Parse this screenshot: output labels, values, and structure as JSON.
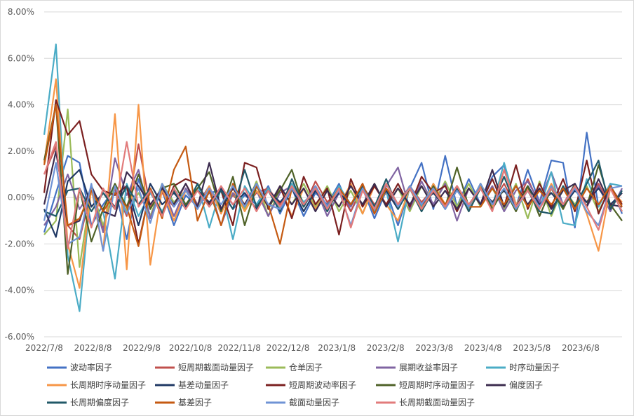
{
  "chart_data": {
    "type": "line",
    "title": "",
    "xlabel": "",
    "ylabel": "",
    "ylim": [
      -0.06,
      0.08
    ],
    "y_ticks": [
      "-6.00%",
      "-4.00%",
      "-2.00%",
      "0.00%",
      "2.00%",
      "4.00%",
      "6.00%",
      "8.00%"
    ],
    "x_ticks": [
      "2022/7/8",
      "2022/8/8",
      "2022/9/8",
      "2022/10/8",
      "2022/11/8",
      "2022/12/8",
      "2023/1/8",
      "2023/2/8",
      "2023/3/8",
      "2023/4/8",
      "2023/5/8",
      "2023/6/8"
    ],
    "grid": true,
    "legend_position": "bottom",
    "n_points": 50,
    "series": [
      {
        "name": "波动率因子",
        "color": "#4472c4",
        "values": [
          -0.015,
          0.002,
          0.018,
          0.015,
          -0.012,
          -0.003,
          0.004,
          -0.018,
          0.008,
          -0.008,
          0.003,
          -0.012,
          0.001,
          -0.004,
          0.002,
          0.003,
          -0.005,
          0.001,
          -0.003,
          0.005,
          -0.007,
          0.004,
          -0.008,
          0.002,
          -0.003,
          0.006,
          -0.006,
          0.004,
          -0.009,
          0.003,
          -0.012,
          0.004,
          0.015,
          -0.005,
          0.018,
          -0.004,
          0.008,
          -0.003,
          0.009,
          0.014,
          -0.004,
          0.012,
          -0.002,
          0.016,
          0.015,
          -0.013,
          0.028,
          -0.004,
          0.006,
          -0.007
        ]
      },
      {
        "name": "短周期截面动量因子",
        "color": "#c0504d",
        "values": [
          0.01,
          0.022,
          -0.012,
          -0.018,
          0.003,
          -0.013,
          0.004,
          -0.008,
          0.023,
          -0.004,
          0.002,
          -0.004,
          0.006,
          -0.003,
          0.004,
          -0.005,
          0.001,
          -0.004,
          0.002,
          0.004,
          -0.003,
          0.006,
          -0.004,
          0.007,
          -0.002,
          0.003,
          -0.006,
          0.005,
          -0.003,
          0.002,
          -0.004,
          0.005,
          -0.002,
          0.004,
          -0.003,
          0.005,
          -0.005,
          0.004,
          -0.002,
          0.006,
          -0.004,
          0.008,
          -0.003,
          0.004,
          -0.005,
          0.005,
          -0.002,
          0.006,
          -0.004,
          0.002
        ]
      },
      {
        "name": "仓单因子",
        "color": "#9bbb59",
        "values": [
          -0.016,
          -0.01,
          0.038,
          -0.03,
          0.004,
          -0.012,
          0.005,
          -0.006,
          0.002,
          -0.008,
          0.006,
          -0.002,
          0.003,
          -0.004,
          0.004,
          -0.006,
          0.002,
          -0.005,
          0.007,
          -0.008,
          0.004,
          -0.003,
          0.006,
          -0.004,
          0.005,
          -0.006,
          0.003,
          -0.007,
          0.006,
          -0.004,
          0.004,
          -0.006,
          0.005,
          -0.003,
          0.007,
          -0.004,
          0.006,
          -0.004,
          0.004,
          -0.005,
          0.006,
          -0.009,
          0.007,
          -0.008,
          0.004,
          -0.003,
          0.005,
          -0.006,
          0.004,
          -0.006
        ]
      },
      {
        "name": "展期收益率因子",
        "color": "#8064a2",
        "values": [
          -0.012,
          -0.004,
          0.01,
          -0.005,
          0.003,
          -0.015,
          0.017,
          0.001,
          0.012,
          -0.009,
          0.005,
          -0.008,
          0.004,
          -0.003,
          0.005,
          -0.012,
          0.002,
          -0.003,
          0.003,
          -0.008,
          0.002,
          0.005,
          -0.003,
          0.004,
          -0.008,
          0.002,
          -0.004,
          0.006,
          -0.007,
          0.005,
          0.013,
          -0.005,
          0.007,
          -0.003,
          0.006,
          -0.01,
          0.004,
          -0.003,
          0.005,
          -0.006,
          0.003,
          0.007,
          -0.002,
          0.011,
          -0.003,
          0.006,
          -0.004,
          0.005,
          -0.006,
          0.004
        ]
      },
      {
        "name": "时序动量因子",
        "color": "#4bacc6",
        "values": [
          0.027,
          0.066,
          -0.025,
          -0.049,
          0.005,
          -0.006,
          -0.035,
          0.006,
          -0.008,
          0.002,
          -0.006,
          0.004,
          -0.004,
          0.006,
          -0.013,
          0.004,
          -0.018,
          0.005,
          -0.003,
          0.004,
          -0.005,
          0.006,
          -0.002,
          0.003,
          -0.004,
          0.005,
          -0.003,
          0.004,
          -0.006,
          0.003,
          -0.019,
          0.005,
          -0.004,
          0.006,
          -0.003,
          0.004,
          -0.005,
          0.006,
          -0.004,
          0.015,
          -0.003,
          0.004,
          -0.005,
          0.011,
          -0.011,
          -0.012,
          0.008,
          -0.004,
          0.006,
          0.005
        ]
      },
      {
        "name": "长周期时序动量因子",
        "color": "#f79646",
        "values": [
          0.015,
          0.051,
          -0.02,
          -0.039,
          0.004,
          -0.023,
          0.036,
          -0.031,
          0.04,
          -0.029,
          0.004,
          -0.01,
          0.003,
          -0.005,
          0.005,
          -0.007,
          0.004,
          -0.006,
          0.003,
          -0.004,
          0.005,
          -0.008,
          0.004,
          -0.005,
          0.003,
          -0.004,
          0.006,
          -0.007,
          0.005,
          -0.003,
          -0.01,
          0.004,
          -0.005,
          0.006,
          -0.003,
          0.004,
          -0.006,
          0.005,
          -0.004,
          0.012,
          -0.003,
          0.004,
          -0.005,
          0.006,
          -0.004,
          0.005,
          -0.007,
          -0.023,
          0.004,
          -0.002
        ]
      },
      {
        "name": "基差动量因子",
        "color": "#1f3864",
        "values": [
          -0.005,
          -0.017,
          0.007,
          0.012,
          -0.004,
          0.002,
          -0.004,
          0.005,
          -0.012,
          0.006,
          -0.003,
          0.002,
          -0.004,
          0.003,
          -0.002,
          0.004,
          -0.003,
          0.002,
          -0.005,
          0.003,
          -0.002,
          0.004,
          -0.006,
          0.003,
          -0.004,
          0.002,
          -0.003,
          0.005,
          -0.004,
          0.003,
          -0.005,
          0.004,
          -0.003,
          0.002,
          -0.004,
          0.005,
          -0.003,
          0.004,
          -0.002,
          0.003,
          -0.004,
          0.005,
          -0.003,
          0.002,
          -0.004,
          0.003,
          -0.002,
          0.004,
          -0.003,
          0.002
        ]
      },
      {
        "name": "短周期波动率因子",
        "color": "#7b2020",
        "values": [
          0.002,
          0.042,
          0.027,
          0.033,
          0.01,
          0.003,
          0.001,
          0.005,
          -0.02,
          0.004,
          -0.007,
          0.005,
          0.008,
          0.006,
          -0.003,
          0.003,
          -0.012,
          0.015,
          0.013,
          -0.005,
          0.005,
          -0.009,
          0.009,
          -0.003,
          0.004,
          -0.016,
          0.008,
          -0.004,
          0.005,
          -0.003,
          0.006,
          -0.004,
          0.009,
          0.002,
          0.005,
          -0.006,
          0.004,
          -0.003,
          0.008,
          -0.004,
          0.014,
          -0.005,
          0.006,
          -0.004,
          0.008,
          -0.006,
          0.016,
          -0.007,
          0.005,
          -0.003
        ]
      },
      {
        "name": "短周期时序动量因子",
        "color": "#4f6228",
        "values": [
          0.016,
          0.04,
          -0.033,
          0.004,
          -0.019,
          -0.005,
          0.006,
          -0.004,
          0.01,
          -0.005,
          0.004,
          0.006,
          -0.003,
          0.004,
          0.011,
          -0.006,
          0.009,
          -0.012,
          0.005,
          -0.004,
          0.003,
          0.012,
          -0.004,
          0.005,
          -0.006,
          0.004,
          -0.003,
          0.005,
          -0.004,
          0.006,
          -0.003,
          0.004,
          -0.006,
          0.005,
          -0.004,
          0.013,
          -0.004,
          0.006,
          -0.005,
          0.004,
          -0.006,
          0.005,
          -0.008,
          0.004,
          -0.005,
          0.006,
          -0.004,
          0.014,
          -0.003,
          -0.01
        ]
      },
      {
        "name": "偏度因子",
        "color": "#3c2c4f",
        "values": [
          -0.003,
          0.02,
          -0.012,
          -0.01,
          0.005,
          -0.006,
          -0.008,
          0.011,
          0.005,
          -0.003,
          0.004,
          -0.003,
          0.006,
          -0.004,
          0.015,
          -0.005,
          0.004,
          -0.003,
          0.006,
          -0.004,
          0.005,
          -0.003,
          0.004,
          -0.006,
          0.003,
          -0.004,
          0.005,
          -0.003,
          0.006,
          -0.004,
          0.004,
          -0.003,
          0.005,
          -0.004,
          0.003,
          -0.005,
          0.004,
          -0.003,
          0.012,
          -0.004,
          0.005,
          -0.003,
          0.004,
          -0.005,
          0.003,
          0.006,
          -0.004,
          0.008,
          -0.003,
          -0.004
        ]
      },
      {
        "name": "长周期偏度因子",
        "color": "#215968",
        "values": [
          -0.006,
          -0.008,
          0.003,
          0.004,
          -0.006,
          0.002,
          -0.005,
          0.005,
          -0.003,
          0.004,
          -0.007,
          0.003,
          -0.005,
          0.006,
          -0.004,
          0.003,
          -0.005,
          0.012,
          -0.004,
          0.003,
          -0.006,
          0.008,
          -0.004,
          0.005,
          -0.006,
          0.004,
          -0.003,
          0.005,
          -0.004,
          0.008,
          -0.005,
          0.004,
          -0.006,
          0.003,
          -0.005,
          0.004,
          -0.006,
          0.004,
          -0.003,
          0.009,
          -0.004,
          0.003,
          -0.006,
          -0.007,
          0.005,
          -0.004,
          0.006,
          0.016,
          -0.005,
          0.003
        ]
      },
      {
        "name": "基差因子",
        "color": "#c55a11",
        "values": [
          0.014,
          0.04,
          -0.012,
          -0.009,
          0.003,
          -0.006,
          0.002,
          -0.004,
          -0.021,
          0.004,
          -0.009,
          0.012,
          0.022,
          -0.01,
          0.003,
          -0.012,
          0.006,
          -0.004,
          0.005,
          -0.003,
          -0.02,
          0.004,
          -0.003,
          0.005,
          -0.004,
          0.004,
          -0.003,
          0.006,
          -0.007,
          0.004,
          -0.003,
          0.005,
          -0.005,
          0.004,
          -0.003,
          0.005,
          -0.004,
          -0.004,
          0.004,
          -0.003,
          0.005,
          -0.004,
          0.003,
          -0.003,
          0.004,
          -0.005,
          0.004,
          -0.003,
          0.005,
          -0.004
        ]
      },
      {
        "name": "截面动量因子",
        "color": "#6f93d5",
        "values": [
          -0.01,
          0.015,
          -0.02,
          -0.017,
          0.006,
          -0.023,
          0.005,
          -0.007,
          0.004,
          -0.011,
          0.006,
          -0.004,
          0.003,
          -0.005,
          0.004,
          -0.003,
          0.005,
          -0.004,
          0.006,
          -0.003,
          -0.005,
          0.004,
          -0.003,
          0.005,
          -0.004,
          0.003,
          -0.012,
          0.004,
          -0.005,
          0.006,
          -0.004,
          0.005,
          -0.003,
          0.004,
          -0.005,
          0.003,
          -0.004,
          0.006,
          -0.003,
          0.004,
          -0.005,
          0.003,
          -0.004,
          0.005,
          -0.003,
          0.004,
          -0.006,
          -0.012,
          0.004,
          0.005
        ]
      },
      {
        "name": "长周期截面动量因子",
        "color": "#e27b7b",
        "values": [
          0.01,
          0.024,
          -0.022,
          0.004,
          -0.013,
          0.004,
          -0.005,
          0.024,
          -0.004,
          0.003,
          -0.008,
          0.004,
          -0.005,
          0.003,
          -0.004,
          0.005,
          -0.003,
          0.004,
          -0.006,
          0.003,
          -0.004,
          0.005,
          -0.003,
          0.004,
          -0.005,
          0.004,
          -0.013,
          0.003,
          -0.005,
          0.006,
          -0.003,
          0.004,
          -0.005,
          0.003,
          -0.004,
          0.005,
          -0.003,
          0.004,
          -0.006,
          0.012,
          -0.004,
          0.003,
          -0.005,
          0.004,
          -0.003,
          0.005,
          -0.004,
          -0.014,
          0.004,
          -0.006
        ]
      }
    ]
  }
}
